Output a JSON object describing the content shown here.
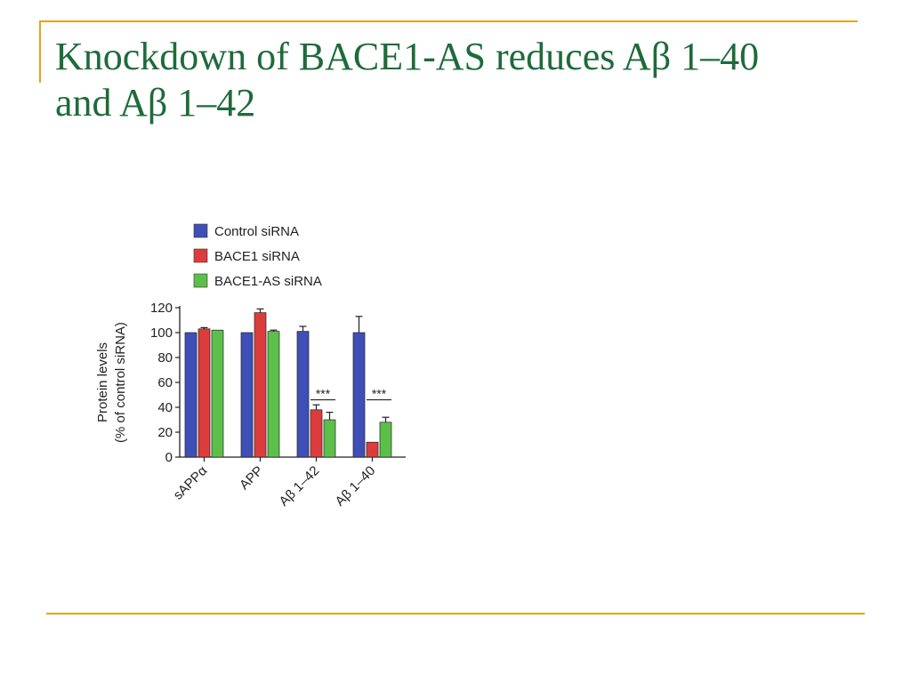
{
  "slide": {
    "title_line1": "Knockdown of BACE1-AS reduces Aβ 1–40",
    "title_line2": "and Aβ 1–42"
  },
  "colors": {
    "accent_rule": "#e5a41b",
    "title": "#1e6b3a",
    "control": "#3f4fb8",
    "bace1": "#dd3c3c",
    "bace1_as": "#5cbf4a"
  },
  "chart_data": {
    "type": "bar",
    "ylabel_line1": "Protein levels",
    "ylabel_line2": "(% of control siRNA)",
    "ylim": [
      0,
      120
    ],
    "yticks": [
      0,
      20,
      40,
      60,
      80,
      100,
      120
    ],
    "categories": [
      "sAPPα",
      "APP",
      "Aβ 1–42",
      "Aβ 1–40"
    ],
    "legend_position": "top",
    "series": [
      {
        "name": "Control siRNA",
        "color": "#3f4fb8",
        "values": [
          100,
          100,
          101,
          100
        ],
        "errors": [
          0,
          0,
          4,
          13
        ]
      },
      {
        "name": "BACE1 siRNA",
        "color": "#dd3c3c",
        "values": [
          103,
          116,
          38,
          12
        ],
        "errors": [
          1,
          3,
          4,
          0
        ]
      },
      {
        "name": "BACE1-AS siRNA",
        "color": "#5cbf4a",
        "values": [
          102,
          101,
          30,
          28
        ],
        "errors": [
          0,
          1,
          6,
          4
        ]
      }
    ],
    "annotations": [
      {
        "category": "Aβ 1–42",
        "text": "***"
      },
      {
        "category": "Aβ 1–40",
        "text": "***"
      }
    ]
  }
}
